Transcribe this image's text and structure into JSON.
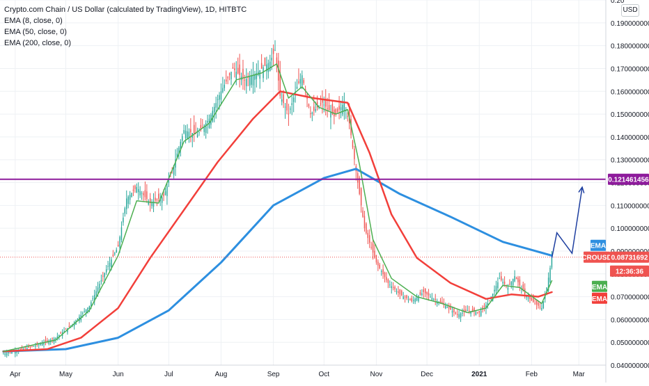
{
  "legend": {
    "title": "Crypto.com Chain / US Dollar (calculated by TradingView), 1D, HITBTC",
    "ema1": "EMA (8, close, 0)",
    "ema2": "EMA (50, close, 0)",
    "ema3": "EMA (200, close, 0)"
  },
  "currency_badge": "USD",
  "colors": {
    "up": "#26a69a",
    "down": "#ef5350",
    "ema8": "#4caf50",
    "ema50": "#f23f3a",
    "ema200": "#2d8fe0",
    "level": "#8e1b9c",
    "projection": "#1e3fa0",
    "grid": "#eef1f4",
    "axis_text": "#131722"
  },
  "chart_data": {
    "type": "candlestick",
    "symbol": "CROUSD",
    "x_labels": [
      "Apr",
      "May",
      "Jun",
      "Jul",
      "Aug",
      "Sep",
      "Oct",
      "Nov",
      "Dec",
      "2021",
      "Feb",
      "Mar"
    ],
    "y_ticks": [
      "0.040000000",
      "0.050000000",
      "0.060000000",
      "0.070000000",
      "0.080000000",
      "0.090000000",
      "0.100000000",
      "0.110000000",
      "0.120000000",
      "0.130000000",
      "0.140000000",
      "0.150000000",
      "0.160000000",
      "0.170000000",
      "0.180000000",
      "0.190000000",
      "0.20"
    ],
    "ylim": [
      0.04,
      0.2
    ],
    "xlim": [
      "2020-03-23",
      "2021-03-17"
    ],
    "horizontal_level": {
      "value": 0.121461456,
      "label": "0.121461456"
    },
    "last_price": {
      "value": 0.08731692,
      "label": "0.08731692",
      "symbol": "CROUSD",
      "countdown": "12:36:36"
    },
    "ema_tags": [
      "EMA",
      "EMA",
      "EMA"
    ],
    "price_path": [
      [
        "2020-03-25",
        0.045
      ],
      [
        "2020-04-05",
        0.047
      ],
      [
        "2020-04-15",
        0.049
      ],
      [
        "2020-04-25",
        0.052
      ],
      [
        "2020-05-05",
        0.058
      ],
      [
        "2020-05-15",
        0.066
      ],
      [
        "2020-05-25",
        0.082
      ],
      [
        "2020-06-01",
        0.092
      ],
      [
        "2020-06-06",
        0.113
      ],
      [
        "2020-06-12",
        0.118
      ],
      [
        "2020-06-20",
        0.111
      ],
      [
        "2020-06-28",
        0.114
      ],
      [
        "2020-07-03",
        0.125
      ],
      [
        "2020-07-10",
        0.143
      ],
      [
        "2020-07-18",
        0.141
      ],
      [
        "2020-07-25",
        0.148
      ],
      [
        "2020-08-01",
        0.16
      ],
      [
        "2020-08-08",
        0.17
      ],
      [
        "2020-08-15",
        0.165
      ],
      [
        "2020-08-22",
        0.168
      ],
      [
        "2020-08-30",
        0.173
      ],
      [
        "2020-09-02",
        0.178
      ],
      [
        "2020-09-05",
        0.158
      ],
      [
        "2020-09-10",
        0.15
      ],
      [
        "2020-09-15",
        0.162
      ],
      [
        "2020-09-18",
        0.167
      ],
      [
        "2020-09-23",
        0.15
      ],
      [
        "2020-09-30",
        0.155
      ],
      [
        "2020-10-07",
        0.149
      ],
      [
        "2020-10-13",
        0.155
      ],
      [
        "2020-10-16",
        0.146
      ],
      [
        "2020-10-20",
        0.125
      ],
      [
        "2020-10-25",
        0.1
      ],
      [
        "2020-11-01",
        0.085
      ],
      [
        "2020-11-08",
        0.076
      ],
      [
        "2020-11-15",
        0.071
      ],
      [
        "2020-11-22",
        0.068
      ],
      [
        "2020-11-29",
        0.072
      ],
      [
        "2020-12-05",
        0.069
      ],
      [
        "2020-12-12",
        0.066
      ],
      [
        "2020-12-19",
        0.062
      ],
      [
        "2020-12-25",
        0.064
      ],
      [
        "2021-01-01",
        0.063
      ],
      [
        "2021-01-07",
        0.068
      ],
      [
        "2021-01-13",
        0.078
      ],
      [
        "2021-01-18",
        0.074
      ],
      [
        "2021-01-22",
        0.079
      ],
      [
        "2021-01-28",
        0.071
      ],
      [
        "2021-02-03",
        0.067
      ],
      [
        "2021-02-07",
        0.065
      ],
      [
        "2021-02-10",
        0.074
      ],
      [
        "2021-02-13",
        0.087
      ]
    ],
    "ema8": [
      [
        "2020-03-25",
        0.046
      ],
      [
        "2020-04-25",
        0.051
      ],
      [
        "2020-05-15",
        0.064
      ],
      [
        "2020-06-01",
        0.088
      ],
      [
        "2020-06-12",
        0.112
      ],
      [
        "2020-06-25",
        0.111
      ],
      [
        "2020-07-10",
        0.138
      ],
      [
        "2020-07-25",
        0.146
      ],
      [
        "2020-08-10",
        0.165
      ],
      [
        "2020-08-25",
        0.168
      ],
      [
        "2020-09-03",
        0.172
      ],
      [
        "2020-09-10",
        0.157
      ],
      [
        "2020-09-18",
        0.162
      ],
      [
        "2020-09-28",
        0.153
      ],
      [
        "2020-10-08",
        0.15
      ],
      [
        "2020-10-15",
        0.152
      ],
      [
        "2020-10-22",
        0.128
      ],
      [
        "2020-10-30",
        0.095
      ],
      [
        "2020-11-10",
        0.078
      ],
      [
        "2020-11-25",
        0.07
      ],
      [
        "2020-12-10",
        0.067
      ],
      [
        "2020-12-25",
        0.063
      ],
      [
        "2021-01-05",
        0.065
      ],
      [
        "2021-01-15",
        0.075
      ],
      [
        "2021-01-25",
        0.074
      ],
      [
        "2021-02-07",
        0.067
      ],
      [
        "2021-02-13",
        0.077
      ]
    ],
    "ema50": [
      [
        "2020-03-25",
        0.046
      ],
      [
        "2020-04-20",
        0.047
      ],
      [
        "2020-05-10",
        0.052
      ],
      [
        "2020-06-01",
        0.065
      ],
      [
        "2020-06-20",
        0.087
      ],
      [
        "2020-07-10",
        0.108
      ],
      [
        "2020-07-30",
        0.129
      ],
      [
        "2020-08-20",
        0.148
      ],
      [
        "2020-09-05",
        0.16
      ],
      [
        "2020-09-25",
        0.157
      ],
      [
        "2020-10-15",
        0.155
      ],
      [
        "2020-10-28",
        0.133
      ],
      [
        "2020-11-10",
        0.106
      ],
      [
        "2020-11-25",
        0.087
      ],
      [
        "2020-12-15",
        0.076
      ],
      [
        "2021-01-05",
        0.069
      ],
      [
        "2021-01-20",
        0.071
      ],
      [
        "2021-02-05",
        0.07
      ],
      [
        "2021-02-13",
        0.072
      ]
    ],
    "ema200": [
      [
        "2020-03-25",
        0.046
      ],
      [
        "2020-05-01",
        0.047
      ],
      [
        "2020-06-01",
        0.052
      ],
      [
        "2020-07-01",
        0.064
      ],
      [
        "2020-08-01",
        0.085
      ],
      [
        "2020-09-01",
        0.11
      ],
      [
        "2020-10-01",
        0.122
      ],
      [
        "2020-10-20",
        0.126
      ],
      [
        "2020-11-15",
        0.115
      ],
      [
        "2020-12-15",
        0.105
      ],
      [
        "2021-01-15",
        0.094
      ],
      [
        "2021-02-13",
        0.088
      ]
    ],
    "projection": [
      [
        "2021-02-13",
        0.087
      ],
      [
        "2021-02-16",
        0.098
      ],
      [
        "2021-02-25",
        0.089
      ],
      [
        "2021-03-03",
        0.118
      ]
    ]
  }
}
